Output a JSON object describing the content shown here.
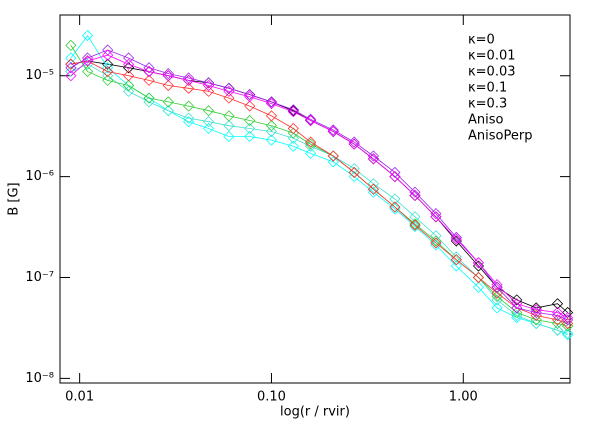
{
  "chart_data": {
    "type": "line",
    "x_label": "log(r / rvir)",
    "y_label": "B [G]",
    "log_x": true,
    "log_y": true,
    "marker": "diamond",
    "xlim": [
      0.0079,
      3.6
    ],
    "ylim": [
      9e-09,
      4e-05
    ],
    "xticks": [
      0.01,
      {
        "value": 0.1,
        "label": "0.10"
      },
      {
        "value": 1,
        "label": "1.00"
      }
    ],
    "yticks": [
      {
        "value": 1e-08,
        "label": "10⁻⁸"
      },
      {
        "value": 1e-07,
        "label": "10⁻⁷"
      },
      {
        "value": 1e-06,
        "label": "10⁻⁶"
      },
      {
        "value": 1e-05,
        "label": "10⁻⁵"
      }
    ],
    "legend": "upper right",
    "x": [
      0.009,
      0.011,
      0.014,
      0.018,
      0.023,
      0.029,
      0.037,
      0.047,
      0.06,
      0.077,
      0.1,
      0.13,
      0.16,
      0.21,
      0.27,
      0.34,
      0.44,
      0.56,
      0.72,
      0.92,
      1.2,
      1.5,
      1.9,
      2.4,
      3.1,
      3.5
    ],
    "series": [
      {
        "name": "κ=0",
        "color": "#000000",
        "values": [
          1.3e-05,
          1.4e-05,
          1.3e-05,
          1.2e-05,
          1.1e-05,
          1e-05,
          9e-06,
          8.5e-06,
          7.5e-06,
          6.5e-06,
          5.5e-06,
          4.5e-06,
          3.6e-06,
          2.8e-06,
          2.1e-06,
          1.5e-06,
          1e-06,
          6.5e-07,
          4e-07,
          2.3e-07,
          1.3e-07,
          8e-08,
          6e-08,
          5e-08,
          5.5e-08,
          4.5e-08
        ]
      },
      {
        "name": "κ=0.01",
        "color": "#00ffff",
        "values": [
          1.5e-05,
          2.5e-05,
          1.2e-05,
          8e-06,
          6e-06,
          4.5e-06,
          3.5e-06,
          3e-06,
          2.5e-06,
          2.5e-06,
          2.3e-06,
          2e-06,
          1.7e-06,
          1.4e-06,
          1e-06,
          7e-07,
          4.8e-07,
          3.2e-07,
          2.1e-07,
          1.3e-07,
          8e-08,
          5e-08,
          4e-08,
          3.5e-08,
          3e-08,
          2.7e-08
        ]
      },
      {
        "name": "κ=0.03",
        "color": "#40e0d0",
        "values": [
          1.1e-05,
          1.3e-05,
          1e-05,
          7e-06,
          5.5e-06,
          4.5e-06,
          3.8e-06,
          3.5e-06,
          3.2e-06,
          3e-06,
          2.8e-06,
          2.4e-06,
          2e-06,
          1.6e-06,
          1.2e-06,
          8.5e-07,
          6e-07,
          4e-07,
          2.6e-07,
          1.6e-07,
          1e-07,
          6e-08,
          4.2e-08,
          3.5e-08,
          3e-08,
          2.8e-08
        ]
      },
      {
        "name": "κ=0.1",
        "color": "#32cd32",
        "values": [
          2e-05,
          1.1e-05,
          9e-06,
          8e-06,
          6e-06,
          5.5e-06,
          5e-06,
          4.5e-06,
          4e-06,
          3.6e-06,
          3.2e-06,
          2.7e-06,
          2.1e-06,
          1.6e-06,
          1.1e-06,
          7.5e-07,
          5e-07,
          3.4e-07,
          2.3e-07,
          1.5e-07,
          1e-07,
          6.5e-08,
          4.5e-08,
          3.8e-08,
          3.5e-08,
          3.3e-08
        ]
      },
      {
        "name": "κ=0.3",
        "color": "#ff3030",
        "values": [
          1.3e-05,
          1.4e-05,
          1.1e-05,
          1e-05,
          9e-06,
          8e-06,
          7.5e-06,
          7e-06,
          6e-06,
          5e-06,
          4e-06,
          3e-06,
          2.2e-06,
          1.6e-06,
          1.1e-06,
          7.5e-07,
          5e-07,
          3.3e-07,
          2.2e-07,
          1.5e-07,
          1e-07,
          7e-08,
          5e-08,
          4.2e-08,
          3.8e-08,
          3.5e-08
        ]
      },
      {
        "name": "Aniso",
        "color": "#a020f0",
        "values": [
          1.2e-05,
          1.5e-05,
          1.8e-05,
          1.5e-05,
          1.2e-05,
          1.05e-05,
          9.5e-06,
          8.5e-06,
          7.5e-06,
          6.5e-06,
          5.5e-06,
          4.6e-06,
          3.7e-06,
          2.9e-06,
          2.2e-06,
          1.6e-06,
          1.1e-06,
          7e-07,
          4.3e-07,
          2.5e-07,
          1.4e-07,
          8e-08,
          5e-08,
          4.5e-08,
          4.2e-08,
          3.8e-08
        ]
      },
      {
        "name": "AnisoPerp",
        "color": "#ff00ff",
        "values": [
          1e-05,
          1.4e-05,
          1.6e-05,
          1.3e-05,
          1.1e-05,
          1e-05,
          9e-06,
          8e-06,
          7e-06,
          6.2e-06,
          5.3e-06,
          4.4e-06,
          3.6e-06,
          2.8e-06,
          2.1e-06,
          1.5e-06,
          1e-06,
          6.5e-07,
          4e-07,
          2.4e-07,
          1.4e-07,
          8.5e-08,
          5.5e-08,
          4.8e-08,
          4.5e-08,
          4e-08
        ]
      }
    ]
  }
}
